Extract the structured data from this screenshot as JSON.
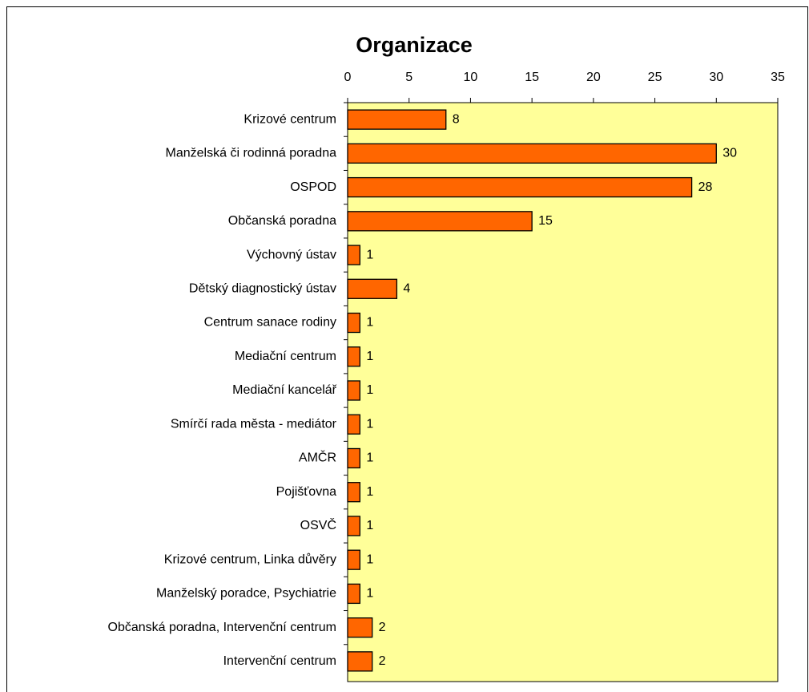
{
  "chart_data": {
    "type": "bar",
    "orientation": "horizontal",
    "title": "Organizace",
    "categories": [
      "Krizové centrum",
      "Manželská či rodinná poradna",
      "OSPOD",
      "Občanská poradna",
      "Výchovný ústav",
      "Dětský diagnostický ústav",
      "Centrum sanace rodiny",
      "Mediační centrum",
      "Mediační kancelář",
      "Smírčí rada města - mediátor",
      "AMČR",
      "Pojišťovna",
      "OSVČ",
      "Krizové centrum, Linka důvěry",
      "Manželský poradce, Psychiatrie",
      "Občanská poradna, Intervenční centrum",
      "Intervenční centrum"
    ],
    "values": [
      8,
      30,
      28,
      15,
      1,
      4,
      1,
      1,
      1,
      1,
      1,
      1,
      1,
      1,
      1,
      2,
      2
    ],
    "color": "#ff6600",
    "plot_background": "#ffff99",
    "xlim": [
      0,
      35
    ],
    "xticks": [
      0,
      5,
      10,
      15,
      20,
      25,
      30,
      35
    ]
  }
}
